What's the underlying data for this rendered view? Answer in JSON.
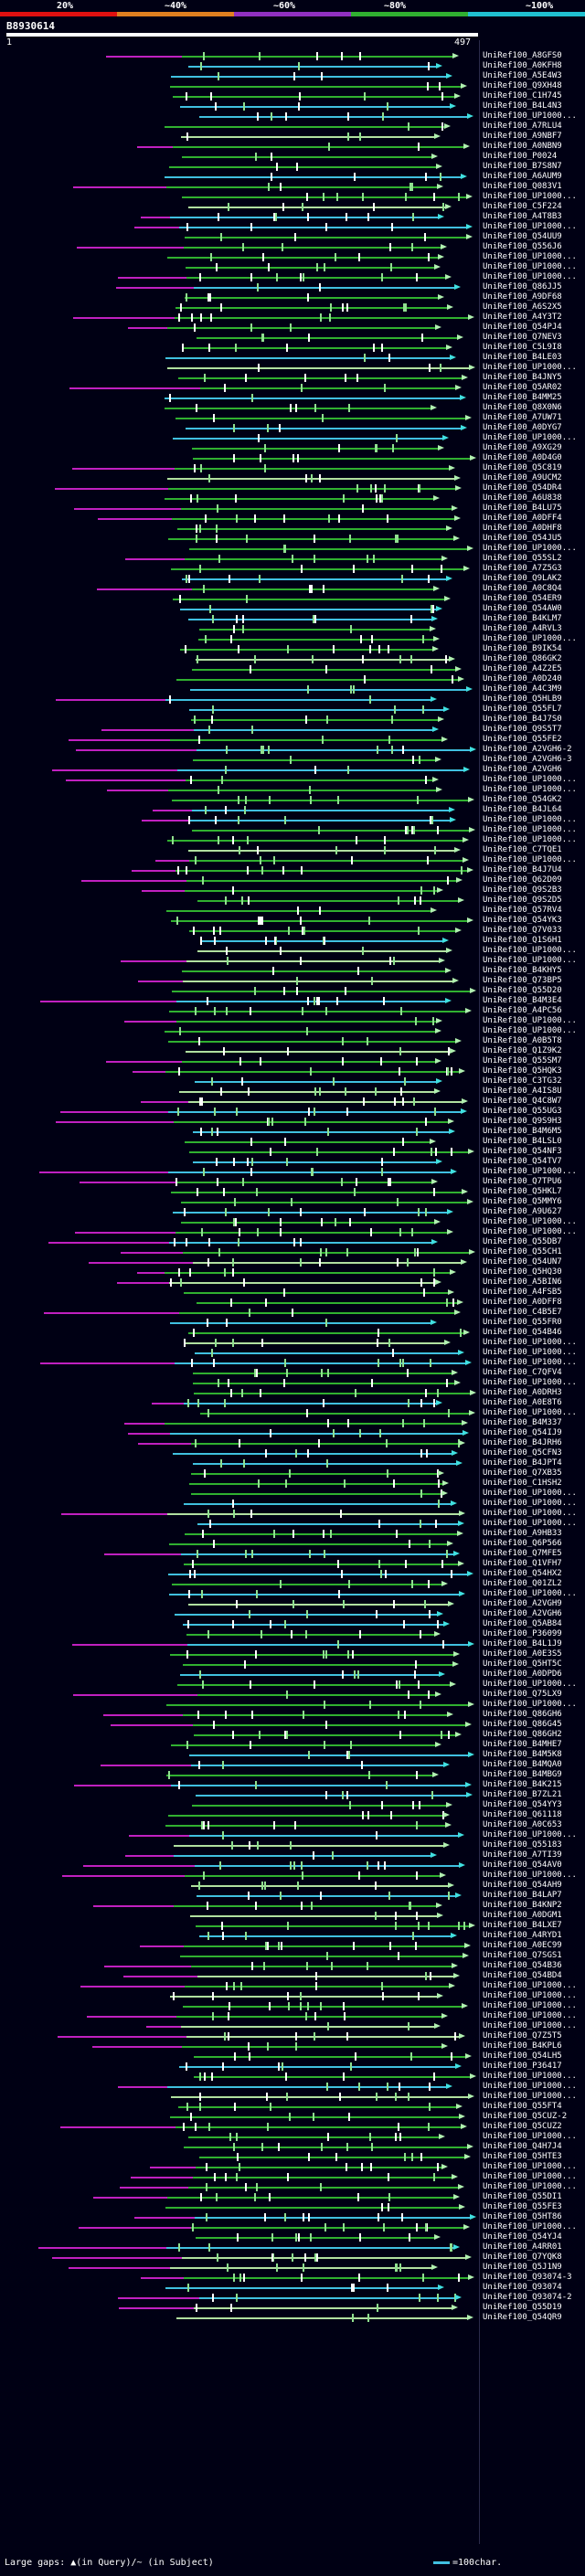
{
  "legend": {
    "percent_labels": [
      "20%",
      "~40%",
      "~60%",
      "~80%",
      "~100%"
    ],
    "colors": [
      "#e01010",
      "#e08020",
      "#9030c0",
      "#30b030",
      "#20c0d0"
    ]
  },
  "query": {
    "id": "B8930614",
    "start": "1",
    "end": "497"
  },
  "hits": [
    "UniRef100_A8GFS0",
    "UniRef100_A0KFH8",
    "UniRef100_A5E4W3",
    "UniRef100_Q9XH48",
    "UniRef100_C1H745",
    "UniRef100_B4L4N3",
    "UniRef100_UP1000...",
    "UniRef100_A7RLU4",
    "UniRef100_A9NBF7",
    "UniRef100_A0NBN9",
    "UniRef100_P0024",
    "UniRef100_B7S8N7",
    "UniRef100_A6AUM9",
    "UniRef100_Q083V1",
    "UniRef100_UP1000...",
    "UniRef100_C5F224",
    "UniRef100_A4T8B3",
    "UniRef100_UP1000...",
    "UniRef100_Q54UU9",
    "UniRef100_Q556J6",
    "UniRef100_UP1000...",
    "UniRef100_UP1000...",
    "UniRef100_UP1000...",
    "UniRef100_Q86JJ5",
    "UniRef100_A9DF68",
    "UniRef100_A6S2X5",
    "UniRef100_A4Y3T2",
    "UniRef100_Q54PJ4",
    "UniRef100_Q7NEV3",
    "UniRef100_C5L9I8",
    "UniRef100_B4LE03",
    "UniRef100_UP1000...",
    "UniRef100_B4JNY5",
    "UniRef100_Q5AR02",
    "UniRef100_B4MM25",
    "UniRef100_Q8X0N6",
    "UniRef100_A7UW71",
    "UniRef100_A0DYG7",
    "UniRef100_UP1000...",
    "UniRef100_A9XG29",
    "UniRef100_A0D4G0",
    "UniRef100_Q5C819",
    "UniRef100_A9UCM2",
    "UniRef100_Q54DR4",
    "UniRef100_A6U838",
    "UniRef100_B4LU75",
    "UniRef100_A0DFF4",
    "UniRef100_A0DHF8",
    "UniRef100_Q54JU5",
    "UniRef100_UP1000...",
    "UniRef100_Q55SL2",
    "UniRef100_A7Z5G3",
    "UniRef100_Q9LAK2",
    "UniRef100_A0C8Q4",
    "UniRef100_Q54ER9",
    "UniRef100_Q54AW0",
    "UniRef100_B4KLM7",
    "UniRef100_A4RVL3",
    "UniRef100_UP1000...",
    "UniRef100_B9IK54",
    "UniRef100_Q86GK2",
    "UniRef100_A4Z2E5",
    "UniRef100_A0D240",
    "UniRef100_A4C3M9",
    "UniRef100_Q5HLB9",
    "UniRef100_Q55FL7",
    "UniRef100_B4J7S0",
    "UniRef100_Q9S5T7",
    "UniRef100_Q55FE2",
    "UniRef100_A2VGH6-2",
    "UniRef100_A2VGH6-3",
    "UniRef100_A2VGH6",
    "UniRef100_UP1000...",
    "UniRef100_UP1000...",
    "UniRef100_Q54GK2",
    "UniRef100_B4JL64",
    "UniRef100_UP1000...",
    "UniRef100_UP1000...",
    "UniRef100_UP1000...",
    "UniRef100_C7TQE1",
    "UniRef100_UP1000...",
    "UniRef100_B4J7U4",
    "UniRef100_Q62D09",
    "UniRef100_Q9S2B3",
    "UniRef100_Q9S2D5",
    "UniRef100_Q57RV4",
    "UniRef100_Q54YK3",
    "UniRef100_Q7V033",
    "UniRef100_Q1S6H1",
    "UniRef100_UP1000...",
    "UniRef100_UP1000...",
    "UniRef100_B4KHY5",
    "UniRef100_Q73BP5",
    "UniRef100_Q55D20",
    "UniRef100_B4M3E4",
    "UniRef100_A4PC56",
    "UniRef100_UP1000...",
    "UniRef100_UP1000...",
    "UniRef100_A0B5T8",
    "UniRef100_Q1Z9K2",
    "UniRef100_Q55SM7",
    "UniRef100_Q5HQK3",
    "UniRef100_C3TG32",
    "UniRef100_A4IS8U",
    "UniRef100_Q4C8W7",
    "UniRef100_Q55UG3",
    "UniRef100_Q9S9H3",
    "UniRef100_B4M6M5",
    "UniRef100_B4LSL0",
    "UniRef100_Q54NF3",
    "UniRef100_Q54TV7",
    "UniRef100_UP1000...",
    "UniRef100_Q7TPU6",
    "UniRef100_Q5HKL7",
    "UniRef100_Q5MMY6",
    "UniRef100_A9U627",
    "UniRef100_UP1000...",
    "UniRef100_UP1000...",
    "UniRef100_Q55DB7",
    "UniRef100_Q55CH1",
    "UniRef100_Q54UN7",
    "UniRef100_Q5HQ30",
    "UniRef100_A5BIN6",
    "UniRef100_A4FSB5",
    "UniRef100_A0DFF8",
    "UniRef100_C4B5E7",
    "UniRef100_Q55FR0",
    "UniRef100_Q54B46",
    "UniRef100_UP1000...",
    "UniRef100_UP1000...",
    "UniRef100_UP1000...",
    "UniRef100_C7QFV4",
    "UniRef100_UP1000...",
    "UniRef100_A0DRH3",
    "UniRef100_A0E8T6",
    "UniRef100_UP1000...",
    "UniRef100_B4M337",
    "UniRef100_Q54IJ9",
    "UniRef100_B4JRH6",
    "UniRef100_Q5CFN3",
    "UniRef100_B4JPT4",
    "UniRef100_Q7XB35",
    "UniRef100_C1HSH2",
    "UniRef100_UP1000...",
    "UniRef100_UP1000...",
    "UniRef100_UP1000...",
    "UniRef100_UP1000...",
    "UniRef100_A9HB33",
    "UniRef100_Q6P566",
    "UniRef100_Q7MFE5",
    "UniRef100_Q1VFH7",
    "UniRef100_Q54HX2",
    "UniRef100_Q01ZL2",
    "UniRef100_UP1000...",
    "UniRef100_A2VGH9",
    "UniRef100_A2VGH6",
    "UniRef100_Q5AB84",
    "UniRef100_P36099",
    "UniRef100_B4L1J9",
    "UniRef100_A0E3S5",
    "UniRef100_Q5HT5C",
    "UniRef100_A0DPD6",
    "UniRef100_UP1000...",
    "UniRef100_Q75LX9",
    "UniRef100_UP1000...",
    "UniRef100_Q86GH6",
    "UniRef100_Q86G45",
    "UniRef100_Q86GH2",
    "UniRef100_B4MHE7",
    "UniRef100_B4M5K8",
    "UniRef100_B4MQA0",
    "UniRef100_B4MBG9",
    "UniRef100_B4K215",
    "UniRef100_B7ZL21",
    "UniRef100_Q54YY3",
    "UniRef100_Q61118",
    "UniRef100_A0C653",
    "UniRef100_UP1000...",
    "UniRef100_Q55183",
    "UniRef100_A7TI39",
    "UniRef100_Q54AV0",
    "UniRef100_UP1000...",
    "UniRef100_Q54AH9",
    "UniRef100_B4LAP7",
    "UniRef100_B4KNP2",
    "UniRef100_A0DGM1",
    "UniRef100_B4LXE7",
    "UniRef100_A4RYD1",
    "UniRef100_A0EC99",
    "UniRef100_Q7SGS1",
    "UniRef100_Q54B36",
    "UniRef100_Q54BD4",
    "UniRef100_UP1000...",
    "UniRef100_UP1000...",
    "UniRef100_UP1000...",
    "UniRef100_UP1000...",
    "UniRef100_UP1000...",
    "UniRef100_Q7Z5T5",
    "UniRef100_B4KPL6",
    "UniRef100_Q54LH5",
    "UniRef100_P36417",
    "UniRef100_UP1000...",
    "UniRef100_UP1000...",
    "UniRef100_UP1000...",
    "UniRef100_Q55FT4",
    "UniRef100_Q5CUZ-2",
    "UniRef100_Q5CUZ2",
    "UniRef100_UP1000...",
    "UniRef100_Q4H7J4",
    "UniRef100_Q5HTE3",
    "UniRef100_UP1000...",
    "UniRef100_UP1000...",
    "UniRef100_UP1000...",
    "UniRef100_Q55DI1",
    "UniRef100_Q55FE3",
    "UniRef100_Q5HT86",
    "UniRef100_UP1000...",
    "UniRef100_Q54YJ4",
    "UniRef100_A4RR01",
    "UniRef100_Q7YQK8",
    "UniRef100_Q5J1N9",
    "UniRef100_Q93074-3",
    "UniRef100_Q93074",
    "UniRef100_Q93074-2",
    "UniRef100_Q55D19",
    "UniRef100_Q54QR9"
  ],
  "footer": {
    "large_gaps": "Large gaps: ▲(in Query)/~ (in Subject)",
    "scale": "=100char."
  }
}
